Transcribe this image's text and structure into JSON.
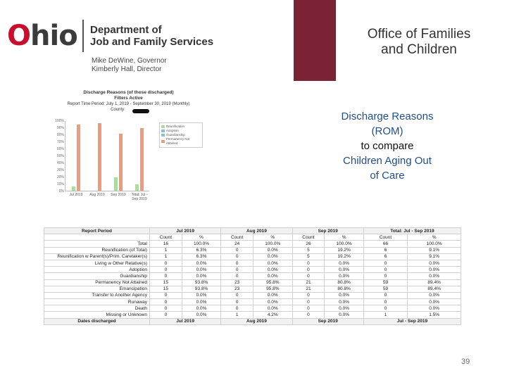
{
  "header": {
    "logo_o": "O",
    "logo_rest": "hio",
    "dept_line1": "Department of",
    "dept_line2": "Job and Family Services",
    "governor": "Mike DeWine, Governor",
    "director": "Kimberly Hall, Director",
    "office_line1": "Office of Families",
    "office_line2": "and Children"
  },
  "chart": {
    "title": "Discharge Reasons (of those discharged)",
    "filters": "Filters Active",
    "period": "Report Time Period: July 1, 2019 - September 30, 2019 (Monthly)",
    "county_label": "County:"
  },
  "chart_data": {
    "type": "bar",
    "categories": [
      "Jul 2019",
      "Aug 2019",
      "Sep 2019",
      "Total: Jul - Sep 2019"
    ],
    "yticks": [
      "100%",
      "90%",
      "80%",
      "70%",
      "60%",
      "50%",
      "40%",
      "30%",
      "20%",
      "10%",
      "0%"
    ],
    "ylim": [
      0,
      100
    ],
    "series": [
      {
        "name": "Reunification",
        "color": "#a8dca0",
        "values": [
          6.3,
          0,
          19.2,
          9.1
        ]
      },
      {
        "name": "Adoption",
        "color": "#8fb8e0",
        "values": [
          0,
          0,
          0,
          0
        ]
      },
      {
        "name": "Guardianship",
        "color": "#7ec8c8",
        "values": [
          0,
          0,
          0,
          0
        ]
      },
      {
        "name": "Permanency Not Attained",
        "color": "#f09a7a",
        "values": [
          93.8,
          95.8,
          80.8,
          89.4
        ]
      }
    ]
  },
  "callout": {
    "line1": "Discharge Reasons",
    "line2": "(ROM)",
    "line3": "to compare",
    "line4": "Children Aging Out",
    "line5": "of Care"
  },
  "table": {
    "corner": "Report Period",
    "periods": [
      "Jul 2019",
      "Aug 2019",
      "Sep 2019",
      "Total: Jul - Sep 2019"
    ],
    "sub_count": "Count",
    "sub_pct": "%",
    "rows": [
      {
        "label": "Total",
        "cells": [
          "16",
          "100.0%",
          "24",
          "100.0%",
          "26",
          "100.0%",
          "66",
          "100.0%"
        ]
      },
      {
        "label": "Reunification (of Total)",
        "cells": [
          "1",
          "6.3%",
          "0",
          "0.0%",
          "5",
          "19.2%",
          "6",
          "9.1%"
        ]
      },
      {
        "label": "Reunification w Parent(s)/Prim. Caretaker(s)",
        "cells": [
          "1",
          "6.3%",
          "0",
          "0.0%",
          "5",
          "19.2%",
          "6",
          "9.1%"
        ]
      },
      {
        "label": "Living w Other Relative(s)",
        "cells": [
          "0",
          "0.0%",
          "0",
          "0.0%",
          "0",
          "0.0%",
          "0",
          "0.0%"
        ]
      },
      {
        "label": "Adoption",
        "cells": [
          "0",
          "0.0%",
          "0",
          "0.0%",
          "0",
          "0.0%",
          "0",
          "0.0%"
        ]
      },
      {
        "label": "Guardianship",
        "cells": [
          "0",
          "0.0%",
          "0",
          "0.0%",
          "0",
          "0.0%",
          "0",
          "0.0%"
        ]
      },
      {
        "label": "Permanency Not Attained",
        "cells": [
          "15",
          "93.8%",
          "23",
          "95.8%",
          "21",
          "80.8%",
          "59",
          "89.4%"
        ]
      },
      {
        "label": "Emancipation",
        "cells": [
          "15",
          "93.8%",
          "23",
          "95.8%",
          "21",
          "80.8%",
          "59",
          "89.4%"
        ]
      },
      {
        "label": "Transfer to Another Agency",
        "cells": [
          "0",
          "0.0%",
          "0",
          "0.0%",
          "0",
          "0.0%",
          "0",
          "0.0%"
        ]
      },
      {
        "label": "Runaway",
        "cells": [
          "0",
          "0.0%",
          "0",
          "0.0%",
          "0",
          "0.0%",
          "0",
          "0.0%"
        ]
      },
      {
        "label": "Death",
        "cells": [
          "0",
          "0.0%",
          "0",
          "0.0%",
          "0",
          "0.0%",
          "0",
          "0.0%"
        ]
      },
      {
        "label": "Missing or Unknown",
        "cells": [
          "0",
          "0.0%",
          "1",
          "4.2%",
          "0",
          "0.0%",
          "1",
          "1.5%"
        ]
      }
    ],
    "foot_label": "Dates discharged",
    "foot_periods": [
      "Jul 2019",
      "Aug 2019",
      "Sep 2019",
      "Jul - Sep 2019"
    ]
  },
  "page_number": "39"
}
